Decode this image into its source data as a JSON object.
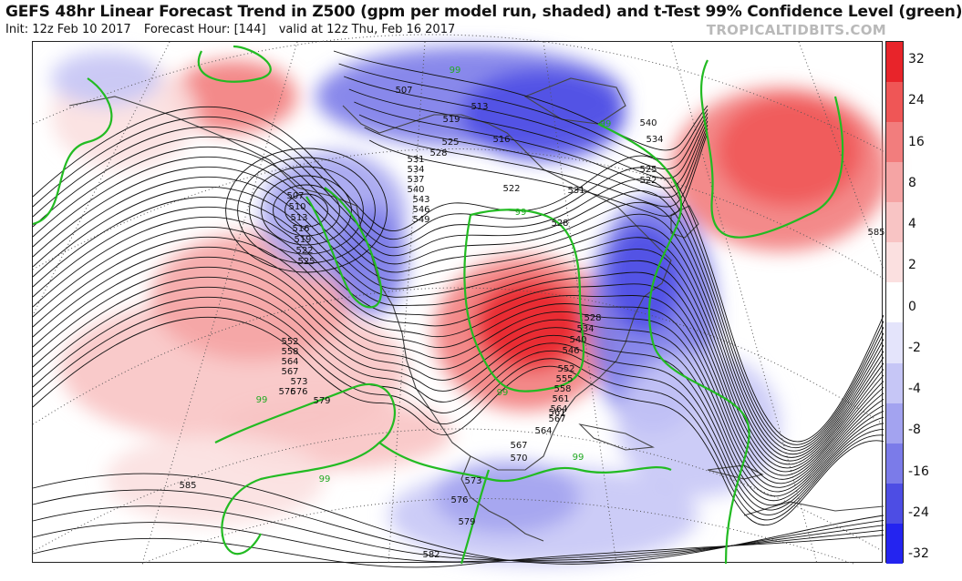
{
  "title": "GEFS 48hr Linear Forecast Trend in Z500 (gpm per model run, shaded) and t-Test 99% Confidence Level (green)",
  "subtitle": {
    "init": "Init: 12z Feb 10 2017",
    "forecast_hour": "Forecast Hour: [144]",
    "valid": "valid at 12z Thu, Feb 16 2017"
  },
  "watermark": "TROPICALTIDBITS.COM",
  "colorbar": {
    "labels": [
      "32",
      "24",
      "16",
      "8",
      "4",
      "2",
      "0",
      "-2",
      "-4",
      "-8",
      "-16",
      "-24",
      "-32"
    ],
    "colors": [
      "#e8242a",
      "#ef5656",
      "#f27d7d",
      "#f5a4a4",
      "#f8c4c4",
      "#fbe0e0",
      "#ffffff",
      "#e4e4fb",
      "#c6c6f6",
      "#a3a3f0",
      "#7b7be9",
      "#4d4de4",
      "#2424f0"
    ]
  },
  "contour_labels": [
    "507",
    "510",
    "513",
    "516",
    "519",
    "522",
    "525",
    "528",
    "531",
    "534",
    "537",
    "540",
    "543",
    "546",
    "549",
    "552",
    "555",
    "558",
    "561",
    "564",
    "567",
    "570",
    "573",
    "576",
    "579",
    "582",
    "585"
  ],
  "significance_label": "99"
}
